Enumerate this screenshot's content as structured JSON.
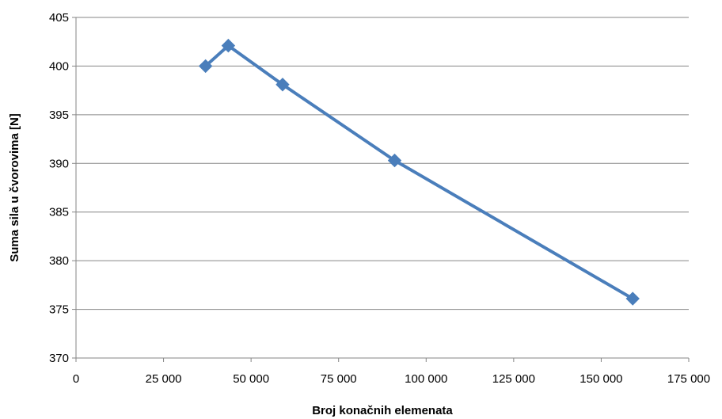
{
  "chart_data": {
    "type": "line",
    "title": "",
    "xlabel": "Broj konačnih elemenata",
    "ylabel": "Suma sila u čvorovima [N]",
    "xlim": [
      0,
      175000
    ],
    "ylim": [
      370,
      405
    ],
    "x_ticks": [
      0,
      25000,
      50000,
      75000,
      100000,
      125000,
      150000,
      175000
    ],
    "x_tick_labels": [
      "0",
      "25 000",
      "50 000",
      "75 000",
      "100 000",
      "125 000",
      "150 000",
      "175 000"
    ],
    "y_ticks": [
      370,
      375,
      380,
      385,
      390,
      395,
      400,
      405
    ],
    "y_tick_labels": [
      "370",
      "375",
      "380",
      "385",
      "390",
      "395",
      "400",
      "405"
    ],
    "grid": true,
    "legend": "none",
    "marker": "diamond",
    "series": [
      {
        "color": "#4a7ebb",
        "points": [
          {
            "x": 37000,
            "y": 400.0
          },
          {
            "x": 43500,
            "y": 402.1
          },
          {
            "x": 59000,
            "y": 398.1
          },
          {
            "x": 91000,
            "y": 390.3
          },
          {
            "x": 159000,
            "y": 376.1
          }
        ]
      }
    ]
  }
}
